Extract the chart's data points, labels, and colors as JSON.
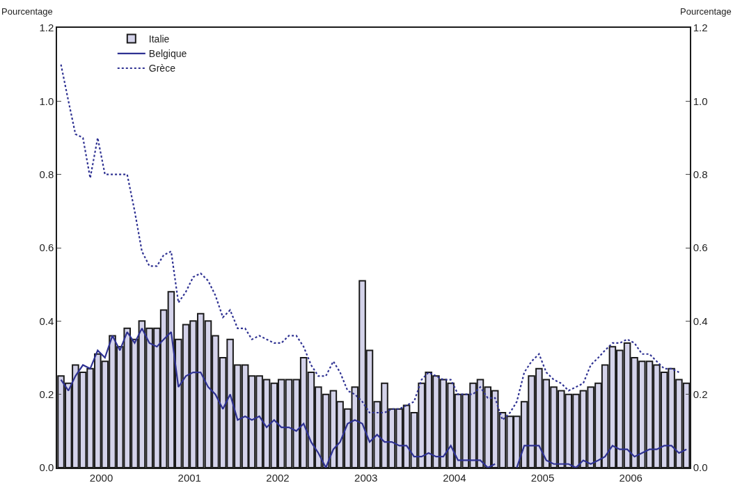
{
  "chart_data": {
    "type": "bar",
    "ylabel": "Pourcentage",
    "y2label": "Pourcentage",
    "x": [
      "2000-01",
      "2000-02",
      "2000-03",
      "2000-04",
      "2000-05",
      "2000-06",
      "2000-07",
      "2000-08",
      "2000-09",
      "2000-10",
      "2000-11",
      "2000-12",
      "2001-01",
      "2001-02",
      "2001-03",
      "2001-04",
      "2001-05",
      "2001-06",
      "2001-07",
      "2001-08",
      "2001-09",
      "2001-10",
      "2001-11",
      "2001-12",
      "2002-01",
      "2002-02",
      "2002-03",
      "2002-04",
      "2002-05",
      "2002-06",
      "2002-07",
      "2002-08",
      "2002-09",
      "2002-10",
      "2002-11",
      "2002-12",
      "2003-01",
      "2003-02",
      "2003-03",
      "2003-04",
      "2003-05",
      "2003-06",
      "2003-07",
      "2003-08",
      "2003-09",
      "2003-10",
      "2003-11",
      "2003-12",
      "2004-01",
      "2004-02",
      "2004-03",
      "2004-04",
      "2004-05",
      "2004-06",
      "2004-07",
      "2004-08",
      "2004-09",
      "2004-10",
      "2004-11",
      "2004-12",
      "2005-01",
      "2005-02",
      "2005-03",
      "2005-04",
      "2005-05",
      "2005-06",
      "2005-07",
      "2005-08",
      "2005-09",
      "2005-10",
      "2005-11",
      "2005-12",
      "2006-01",
      "2006-02",
      "2006-03",
      "2006-04",
      "2006-05",
      "2006-06",
      "2006-07",
      "2006-08",
      "2006-09",
      "2006-10",
      "2006-11",
      "2006-12",
      "2007-01",
      "2007-02"
    ],
    "series": [
      {
        "name": "Italie",
        "color": "#d4d3ea",
        "values": [
          0.25,
          0.23,
          0.28,
          0.26,
          0.27,
          0.31,
          0.29,
          0.36,
          0.33,
          0.38,
          0.35,
          0.4,
          0.38,
          0.38,
          0.43,
          0.48,
          0.35,
          0.39,
          0.4,
          0.42,
          0.4,
          0.36,
          0.3,
          0.35,
          0.28,
          0.28,
          0.25,
          0.25,
          0.24,
          0.23,
          0.24,
          0.24,
          0.24,
          0.3,
          0.26,
          0.22,
          0.2,
          0.21,
          0.18,
          0.16,
          0.22,
          0.51,
          0.32,
          0.18,
          0.23,
          0.16,
          0.16,
          0.17,
          0.15,
          0.23,
          0.26,
          0.25,
          0.24,
          0.23,
          0.2,
          0.2,
          0.23,
          0.24,
          0.22,
          0.21,
          0.15,
          0.14,
          0.14,
          0.18,
          0.25,
          0.27,
          0.24,
          0.22,
          0.21,
          0.2,
          0.2,
          0.21,
          0.22,
          0.23,
          0.28,
          0.33,
          0.32,
          0.34,
          0.3,
          0.29,
          0.29,
          0.28,
          0.26,
          0.27,
          0.24,
          0.23
        ]
      },
      {
        "name": "Belgique",
        "type": "line",
        "line_style": "solid",
        "color": "#2e3192",
        "values": [
          0.24,
          0.21,
          0.25,
          0.28,
          0.27,
          0.32,
          0.3,
          0.36,
          0.32,
          0.37,
          0.34,
          0.38,
          0.34,
          0.33,
          0.35,
          0.37,
          0.22,
          0.25,
          0.26,
          0.26,
          0.22,
          0.2,
          0.16,
          0.2,
          0.13,
          0.14,
          0.13,
          0.14,
          0.11,
          0.13,
          0.11,
          0.11,
          0.1,
          0.12,
          0.07,
          0.04,
          0,
          0.05,
          0.07,
          0.12,
          0.13,
          0.12,
          0.07,
          0.09,
          0.07,
          0.07,
          0.06,
          0.06,
          0.03,
          0.03,
          0.04,
          0.03,
          0.03,
          0.06,
          0.02,
          0.02,
          0.02,
          0.02,
          0,
          0.01,
          null,
          null,
          0,
          0.06,
          0.06,
          0.06,
          0.02,
          0.01,
          0.01,
          0.01,
          0,
          0.02,
          0.01,
          0.02,
          0.03,
          0.06,
          0.05,
          0.05,
          0.03,
          0.04,
          0.05,
          0.05,
          0.06,
          0.06,
          0.04,
          0.05
        ]
      },
      {
        "name": "Grèce",
        "type": "line",
        "line_style": "dotted",
        "color": "#2e3192",
        "values": [
          1.1,
          1.0,
          0.91,
          0.9,
          0.79,
          0.9,
          0.8,
          0.8,
          0.8,
          0.8,
          0.7,
          0.59,
          0.55,
          0.55,
          0.58,
          0.59,
          0.45,
          0.48,
          0.52,
          0.53,
          0.51,
          0.47,
          0.41,
          0.43,
          0.38,
          0.38,
          0.35,
          0.36,
          0.35,
          0.34,
          0.34,
          0.36,
          0.36,
          0.33,
          0.28,
          0.25,
          0.25,
          0.29,
          0.26,
          0.21,
          0.2,
          0.18,
          0.15,
          0.15,
          0.15,
          0.16,
          0.16,
          0.17,
          0.18,
          0.24,
          0.26,
          0.25,
          0.24,
          0.24,
          0.2,
          0.2,
          0.2,
          0.22,
          0.19,
          0.19,
          0.13,
          0.15,
          0.18,
          0.26,
          0.29,
          0.31,
          0.26,
          0.24,
          0.23,
          0.21,
          0.22,
          0.23,
          0.28,
          0.3,
          0.32,
          0.34,
          0.34,
          0.35,
          0.34,
          0.31,
          0.31,
          0.29,
          0.27,
          0.27,
          0.26,
          null
        ]
      }
    ],
    "xlim": [
      "1999-12-16",
      "2007-02-15"
    ],
    "xticks": [
      {
        "value": "2000-06-16",
        "label": "2000"
      },
      {
        "value": "2001-06-16",
        "label": "2001"
      },
      {
        "value": "2002-06-16",
        "label": "2002"
      },
      {
        "value": "2003-06-16",
        "label": "2003"
      },
      {
        "value": "2004-06-16",
        "label": "2004"
      },
      {
        "value": "2005-06-16",
        "label": "2005"
      },
      {
        "value": "2006-06-16",
        "label": "2006"
      }
    ],
    "ylim": [
      0,
      1.2
    ],
    "yticks": [
      {
        "value": 0,
        "label": "0.0"
      },
      0.2,
      0.4,
      0.6,
      0.8,
      {
        "value": 1,
        "label": "1.0"
      },
      1.2
    ],
    "y2lim": [
      0,
      1.2
    ],
    "y2ticks": [
      {
        "value": 0,
        "label": "0.0"
      },
      0.2,
      0.4,
      0.6,
      0.8,
      {
        "value": 1,
        "label": "1.0"
      },
      1.2
    ],
    "legend": "top left"
  }
}
